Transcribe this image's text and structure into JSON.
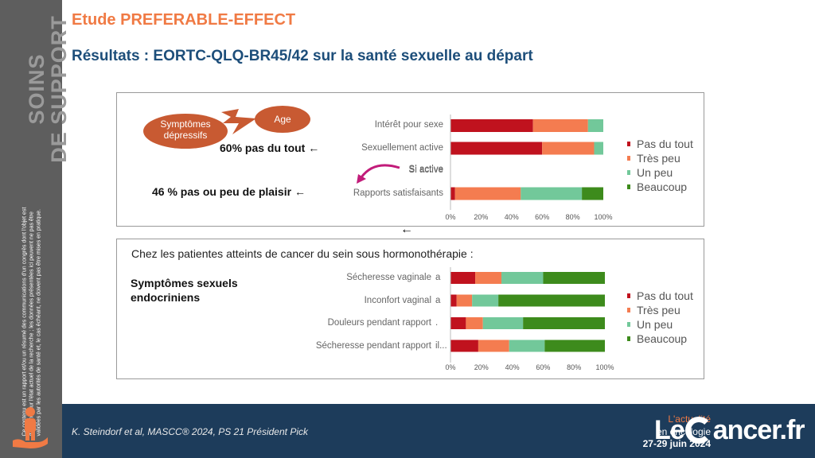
{
  "sidebar": {
    "title_line1": "SOINS",
    "title_line2": "DE SUPPORT",
    "disclaimer": "Ce contenu est un rapport et/ou un résumé des communications d'un congrès dont l'objet est d'informer sur l'état actuel de la recherche ; les données présentées ici peuvent ne pas être validées par les autorités de santé et, le cas échéant, ne doivent pas être mises en pratique."
  },
  "header": {
    "study_title": "Etude PREFERABLE-EFFECT",
    "subtitle": "Résultats : EORTC-QLQ-BR45/42 sur la santé sexuelle au départ"
  },
  "panel1": {
    "bubbles": {
      "symptoms": "Symptômes dépressifs",
      "age": "Age"
    },
    "callout1": "60% pas du tout ←",
    "callout2": "46 % pas ou peu de plaisir ←",
    "si_active": "Si active"
  },
  "panel2": {
    "heading": "Chez les patientes atteints de cancer du sein sous hormonothérapie :",
    "symptom_label_line1": "Symptômes sexuels",
    "symptom_label_line2": "endocriniens"
  },
  "mid_arrow": "←",
  "footer": {
    "reference": "K. Steindorf et al, MASCC® 2024, PS 21 Président Pick",
    "event_line1": "L'actualité",
    "event_line2": "en oncologie",
    "event_dates": "27-29 juin 2024",
    "brand_left": "Le",
    "brand_right": "ancer.fr"
  },
  "colors": {
    "pas_du_tout": "#c0121e",
    "tres_peu": "#f47c50",
    "un_peu": "#72c89a",
    "beaucoup": "#3d8b1c",
    "accent": "#f07a44",
    "navy": "#1d3c5b"
  },
  "chart_data": [
    {
      "type": "bar",
      "orientation": "horizontal",
      "stacked": true,
      "categories": [
        "Intérêt pour sexe",
        "Sexuellement active",
        "Si active",
        "Rapports satisfaisants"
      ],
      "series": [
        {
          "name": "Pas du tout",
          "values": [
            54,
            60,
            0,
            3
          ]
        },
        {
          "name": "Très peu",
          "values": [
            36,
            34,
            0,
            43
          ]
        },
        {
          "name": "Un peu",
          "values": [
            10,
            6,
            0,
            40
          ]
        },
        {
          "name": "Beaucoup",
          "values": [
            0,
            0,
            0,
            14
          ]
        }
      ],
      "x_ticks": [
        "0%",
        "20%",
        "40%",
        "60%",
        "80%",
        "100%"
      ],
      "xlim": [
        0,
        100
      ],
      "legend": "right"
    },
    {
      "type": "bar",
      "orientation": "horizontal",
      "stacked": true,
      "categories": [
        "Sécheresse vaginale",
        "Inconfort vaginal",
        "Douleurs pendant rapport",
        "Sécheresse pendant rapport"
      ],
      "category_markers": [
        "a",
        "a",
        ".",
        "il..."
      ],
      "series": [
        {
          "name": "Pas du tout",
          "values": [
            16,
            4,
            10,
            18
          ]
        },
        {
          "name": "Très peu",
          "values": [
            17,
            10,
            11,
            20
          ]
        },
        {
          "name": "Un peu",
          "values": [
            27,
            17,
            26,
            23
          ]
        },
        {
          "name": "Beaucoup",
          "values": [
            40,
            69,
            53,
            39
          ]
        }
      ],
      "x_ticks": [
        "0%",
        "20%",
        "40%",
        "60%",
        "80%",
        "100%"
      ],
      "xlim": [
        0,
        100
      ],
      "legend": "right"
    }
  ]
}
